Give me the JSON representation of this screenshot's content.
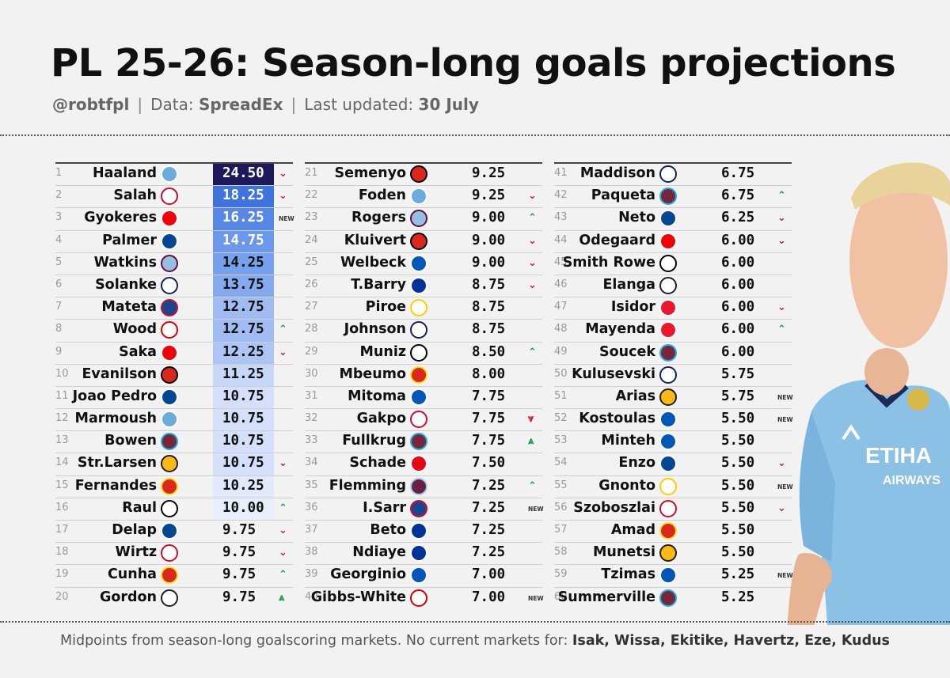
{
  "header": {
    "title": "PL 25-26: Season-long goals projections",
    "handle": "@robtfpl",
    "data_label": "Data:",
    "data_source": "SpreadEx",
    "updated_label": "Last updated:",
    "updated_value": "30 July",
    "separator": "|"
  },
  "footer": {
    "text": "Midpoints from season-long goalscoring markets. No current markets for:",
    "players": "Isak, Wissa, Ekitike, Havertz, Eze, Kudus"
  },
  "team_colors": {
    "MCI": {
      "bg": "#6cabdd",
      "fg": "#ffffff",
      "icon": "man-city-crest"
    },
    "LIV": {
      "bg": "#ffffff",
      "fg": "#c8102e",
      "icon": "liverpool-crest"
    },
    "ARS": {
      "bg": "#ef0107",
      "fg": "#ffffff",
      "icon": "arsenal-crest"
    },
    "CHE": {
      "bg": "#034694",
      "fg": "#ffffff",
      "icon": "chelsea-crest"
    },
    "AVL": {
      "bg": "#95bfe5",
      "fg": "#670e36",
      "icon": "aston-villa-crest"
    },
    "TOT": {
      "bg": "#ffffff",
      "fg": "#132257",
      "icon": "tottenham-crest"
    },
    "CRY": {
      "bg": "#1b458f",
      "fg": "#c4122e",
      "icon": "crystal-palace-crest"
    },
    "NFO": {
      "bg": "#ffffff",
      "fg": "#dd0000",
      "icon": "forest-crest"
    },
    "BOU": {
      "bg": "#da291c",
      "fg": "#000000",
      "icon": "bournemouth-crest"
    },
    "WHU": {
      "bg": "#7a263a",
      "fg": "#1bb1e7",
      "icon": "west-ham-crest"
    },
    "WOL": {
      "bg": "#fdb913",
      "fg": "#231f20",
      "icon": "wolves-crest"
    },
    "MUN": {
      "bg": "#da291c",
      "fg": "#fbe122",
      "icon": "man-united-crest"
    },
    "FUL": {
      "bg": "#ffffff",
      "fg": "#000000",
      "icon": "fulham-crest"
    },
    "NEW": {
      "bg": "#ffffff",
      "fg": "#241f20",
      "icon": "newcastle-crest"
    },
    "BHA": {
      "bg": "#0057b8",
      "fg": "#ffffff",
      "icon": "brighton-crest"
    },
    "EVE": {
      "bg": "#003399",
      "fg": "#ffffff",
      "icon": "everton-crest"
    },
    "LEE": {
      "bg": "#ffffff",
      "fg": "#ffcd00",
      "icon": "leeds-crest"
    },
    "BRE": {
      "bg": "#e30613",
      "fg": "#ffffff",
      "icon": "brentford-crest"
    },
    "BUR": {
      "bg": "#6c1d45",
      "fg": "#99d6ea",
      "icon": "burnley-crest"
    },
    "SUN": {
      "bg": "#eb172b",
      "fg": "#ffffff",
      "icon": "sunderland-crest"
    }
  },
  "trend_symbols": {
    "down": "⌄",
    "double_down": "⩔",
    "up": "⌃",
    "double_up": "⩓",
    "new": "NEW"
  },
  "chart_data": {
    "type": "table",
    "value_scale_max": 24.5,
    "value_scale_min": 10.0,
    "rows": [
      {
        "rank": "1",
        "name": "Haaland",
        "team": "MCI",
        "value": "24.50",
        "trend": "down"
      },
      {
        "rank": "2",
        "name": "Salah",
        "team": "LIV",
        "value": "18.25",
        "trend": "down"
      },
      {
        "rank": "3",
        "name": "Gyokeres",
        "team": "ARS",
        "value": "16.25",
        "trend": "new"
      },
      {
        "rank": "4",
        "name": "Palmer",
        "team": "CHE",
        "value": "14.75",
        "trend": ""
      },
      {
        "rank": "5",
        "name": "Watkins",
        "team": "AVL",
        "value": "14.25",
        "trend": ""
      },
      {
        "rank": "6",
        "name": "Solanke",
        "team": "TOT",
        "value": "13.75",
        "trend": ""
      },
      {
        "rank": "7",
        "name": "Mateta",
        "team": "CRY",
        "value": "12.75",
        "trend": ""
      },
      {
        "rank": "8",
        "name": "Wood",
        "team": "NFO",
        "value": "12.75",
        "trend": "up"
      },
      {
        "rank": "9",
        "name": "Saka",
        "team": "ARS",
        "value": "12.25",
        "trend": "down"
      },
      {
        "rank": "10",
        "name": "Evanilson",
        "team": "BOU",
        "value": "11.25",
        "trend": ""
      },
      {
        "rank": "11",
        "name": "Joao Pedro",
        "team": "CHE",
        "value": "10.75",
        "trend": ""
      },
      {
        "rank": "12",
        "name": "Marmoush",
        "team": "MCI",
        "value": "10.75",
        "trend": ""
      },
      {
        "rank": "13",
        "name": "Bowen",
        "team": "WHU",
        "value": "10.75",
        "trend": ""
      },
      {
        "rank": "14",
        "name": "Str.Larsen",
        "team": "WOL",
        "value": "10.75",
        "trend": "down"
      },
      {
        "rank": "15",
        "name": "Fernandes",
        "team": "MUN",
        "value": "10.25",
        "trend": ""
      },
      {
        "rank": "16",
        "name": "Raul",
        "team": "FUL",
        "value": "10.00",
        "trend": "up"
      },
      {
        "rank": "17",
        "name": "Delap",
        "team": "CHE",
        "value": "9.75",
        "trend": "down"
      },
      {
        "rank": "18",
        "name": "Wirtz",
        "team": "LIV",
        "value": "9.75",
        "trend": "down"
      },
      {
        "rank": "19",
        "name": "Cunha",
        "team": "MUN",
        "value": "9.75",
        "trend": "up"
      },
      {
        "rank": "20",
        "name": "Gordon",
        "team": "NEW",
        "value": "9.75",
        "trend": "double_up"
      },
      {
        "rank": "21",
        "name": "Semenyo",
        "team": "BOU",
        "value": "9.25",
        "trend": ""
      },
      {
        "rank": "22",
        "name": "Foden",
        "team": "MCI",
        "value": "9.25",
        "trend": "down"
      },
      {
        "rank": "23",
        "name": "Rogers",
        "team": "AVL",
        "value": "9.00",
        "trend": "up"
      },
      {
        "rank": "24",
        "name": "Kluivert",
        "team": "BOU",
        "value": "9.00",
        "trend": "down"
      },
      {
        "rank": "25",
        "name": "Welbeck",
        "team": "BHA",
        "value": "9.00",
        "trend": "down"
      },
      {
        "rank": "26",
        "name": "T.Barry",
        "team": "EVE",
        "value": "8.75",
        "trend": "down"
      },
      {
        "rank": "27",
        "name": "Piroe",
        "team": "LEE",
        "value": "8.75",
        "trend": ""
      },
      {
        "rank": "28",
        "name": "Johnson",
        "team": "TOT",
        "value": "8.75",
        "trend": ""
      },
      {
        "rank": "29",
        "name": "Muniz",
        "team": "FUL",
        "value": "8.50",
        "trend": "up"
      },
      {
        "rank": "30",
        "name": "Mbeumo",
        "team": "MUN",
        "value": "8.00",
        "trend": ""
      },
      {
        "rank": "31",
        "name": "Mitoma",
        "team": "BHA",
        "value": "7.75",
        "trend": ""
      },
      {
        "rank": "32",
        "name": "Gakpo",
        "team": "LIV",
        "value": "7.75",
        "trend": "double_down"
      },
      {
        "rank": "33",
        "name": "Fullkrug",
        "team": "WHU",
        "value": "7.75",
        "trend": "double_up"
      },
      {
        "rank": "34",
        "name": "Schade",
        "team": "BRE",
        "value": "7.50",
        "trend": ""
      },
      {
        "rank": "35",
        "name": "Flemming",
        "team": "BUR",
        "value": "7.25",
        "trend": "up"
      },
      {
        "rank": "36",
        "name": "I.Sarr",
        "team": "CRY",
        "value": "7.25",
        "trend": "new"
      },
      {
        "rank": "37",
        "name": "Beto",
        "team": "EVE",
        "value": "7.25",
        "trend": ""
      },
      {
        "rank": "38",
        "name": "Ndiaye",
        "team": "EVE",
        "value": "7.25",
        "trend": ""
      },
      {
        "rank": "39",
        "name": "Georginio",
        "team": "BHA",
        "value": "7.00",
        "trend": ""
      },
      {
        "rank": "40",
        "name": "Gibbs-White",
        "team": "NFO",
        "value": "7.00",
        "trend": "new"
      },
      {
        "rank": "41",
        "name": "Maddison",
        "team": "TOT",
        "value": "6.75",
        "trend": ""
      },
      {
        "rank": "42",
        "name": "Paqueta",
        "team": "WHU",
        "value": "6.75",
        "trend": "up"
      },
      {
        "rank": "43",
        "name": "Neto",
        "team": "CHE",
        "value": "6.25",
        "trend": "down"
      },
      {
        "rank": "44",
        "name": "Odegaard",
        "team": "ARS",
        "value": "6.00",
        "trend": "down"
      },
      {
        "rank": "45",
        "name": "Smith Rowe",
        "team": "FUL",
        "value": "6.00",
        "trend": ""
      },
      {
        "rank": "46",
        "name": "Elanga",
        "team": "NEW",
        "value": "6.00",
        "trend": ""
      },
      {
        "rank": "47",
        "name": "Isidor",
        "team": "SUN",
        "value": "6.00",
        "trend": "down"
      },
      {
        "rank": "48",
        "name": "Mayenda",
        "team": "SUN",
        "value": "6.00",
        "trend": "up"
      },
      {
        "rank": "49",
        "name": "Soucek",
        "team": "WHU",
        "value": "6.00",
        "trend": ""
      },
      {
        "rank": "50",
        "name": "Kulusevski",
        "team": "TOT",
        "value": "5.75",
        "trend": ""
      },
      {
        "rank": "51",
        "name": "Arias",
        "team": "WOL",
        "value": "5.75",
        "trend": "new"
      },
      {
        "rank": "52",
        "name": "Kostoulas",
        "team": "BHA",
        "value": "5.50",
        "trend": "new"
      },
      {
        "rank": "53",
        "name": "Minteh",
        "team": "BHA",
        "value": "5.50",
        "trend": ""
      },
      {
        "rank": "54",
        "name": "Enzo",
        "team": "CHE",
        "value": "5.50",
        "trend": "down"
      },
      {
        "rank": "55",
        "name": "Gnonto",
        "team": "LEE",
        "value": "5.50",
        "trend": "new"
      },
      {
        "rank": "56",
        "name": "Szoboszlai",
        "team": "LIV",
        "value": "5.50",
        "trend": "down"
      },
      {
        "rank": "57",
        "name": "Amad",
        "team": "MUN",
        "value": "5.50",
        "trend": ""
      },
      {
        "rank": "58",
        "name": "Munetsi",
        "team": "WOL",
        "value": "5.50",
        "trend": ""
      },
      {
        "rank": "59",
        "name": "Tzimas",
        "team": "BHA",
        "value": "5.25",
        "trend": "new"
      },
      {
        "rank": "60",
        "name": "Summerville",
        "team": "WHU",
        "value": "5.25",
        "trend": ""
      }
    ]
  }
}
